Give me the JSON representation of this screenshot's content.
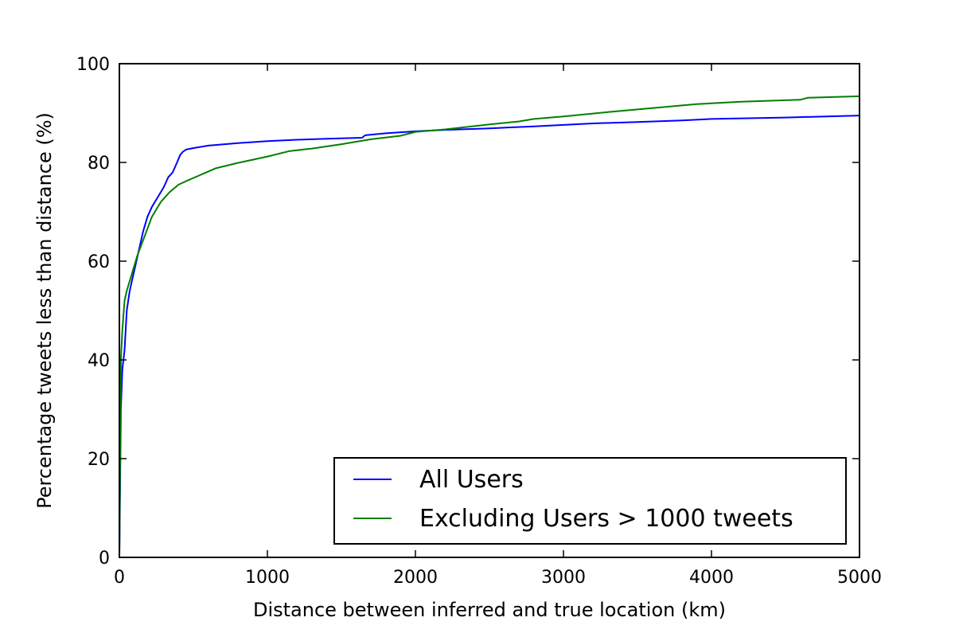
{
  "chart_data": {
    "type": "line",
    "title": "",
    "xlabel": "Distance between inferred and true location (km)",
    "ylabel": "Percentage tweets less than distance (%)",
    "xlim": [
      0,
      5000
    ],
    "ylim": [
      0,
      100
    ],
    "xticks": [
      0,
      1000,
      2000,
      3000,
      4000,
      5000
    ],
    "yticks": [
      0,
      20,
      40,
      60,
      80,
      100
    ],
    "grid": false,
    "legend_position": "lower-right",
    "series": [
      {
        "name": "All Users",
        "color": "#0000ff",
        "x": [
          0,
          10,
          20,
          35,
          50,
          70,
          100,
          130,
          160,
          190,
          220,
          260,
          300,
          330,
          360,
          390,
          410,
          430,
          450,
          500,
          600,
          800,
          1000,
          1200,
          1400,
          1640,
          1660,
          1800,
          2000,
          2200,
          2500,
          2800,
          3000,
          3200,
          3500,
          3800,
          4000,
          4500,
          5000
        ],
        "y": [
          0,
          30,
          38,
          42,
          50,
          54,
          58,
          62,
          66,
          69,
          71,
          73,
          75,
          77,
          78,
          80,
          81.5,
          82.2,
          82.6,
          82.9,
          83.4,
          83.9,
          84.3,
          84.6,
          84.8,
          85.0,
          85.5,
          85.9,
          86.3,
          86.6,
          86.9,
          87.3,
          87.6,
          87.9,
          88.2,
          88.5,
          88.8,
          89.1,
          89.5
        ]
      },
      {
        "name": "Excluding Users > 1000 tweets",
        "color": "#008000",
        "x": [
          0,
          10,
          20,
          35,
          50,
          80,
          120,
          170,
          220,
          280,
          340,
          400,
          450,
          550,
          650,
          800,
          1000,
          1150,
          1300,
          1500,
          1700,
          1900,
          2000,
          2200,
          2500,
          2700,
          2800,
          3000,
          3300,
          3600,
          3900,
          4200,
          4600,
          4650,
          5000
        ],
        "y": [
          0,
          40,
          46,
          52,
          54,
          57,
          61,
          65,
          69,
          72,
          74,
          75.5,
          76.2,
          77.5,
          78.8,
          79.9,
          81.2,
          82.3,
          82.8,
          83.7,
          84.7,
          85.4,
          86.2,
          86.7,
          87.7,
          88.3,
          88.8,
          89.3,
          90.2,
          91.0,
          91.8,
          92.3,
          92.7,
          93.1,
          93.4
        ]
      }
    ]
  }
}
